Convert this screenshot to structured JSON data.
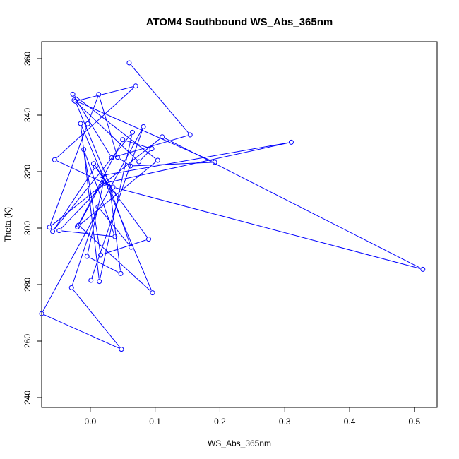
{
  "chart_data": {
    "type": "line",
    "title": "ATOM4 Southbound WS_Abs_365nm",
    "xlabel": "WS_Abs_365nm",
    "ylabel": "Theta (K)",
    "xlim": [
      -0.075,
      0.535
    ],
    "ylim": [
      236.5,
      366
    ],
    "xticks": [
      0.0,
      0.1,
      0.2,
      0.3,
      0.4,
      0.5
    ],
    "xtick_labels": [
      "0.0",
      "0.1",
      "0.2",
      "0.3",
      "0.4",
      "0.5"
    ],
    "yticks": [
      240,
      260,
      280,
      300,
      320,
      340,
      360
    ],
    "ytick_labels": [
      "240",
      "260",
      "280",
      "300",
      "320",
      "340",
      "360"
    ],
    "grid": false,
    "line_color": "#0000ff",
    "marker": "open-circle",
    "series": [
      {
        "x": [
          0.06,
          0.154,
          0.033,
          -0.027,
          0.104,
          -0.02,
          0.05,
          0.095,
          0.075,
          -0.025,
          0.192,
          0.062,
          0.042,
          0.013,
          -0.004,
          -0.063,
          0.111,
          0.513,
          0.035,
          -0.055,
          0.07,
          -0.023,
          0.036,
          0.005,
          0.018,
          0.31,
          0.022,
          -0.048,
          0.038,
          -0.01,
          0.016,
          0.09,
          0.008,
          -0.058,
          0.065,
          0.014,
          -0.015,
          0.096,
          -0.018,
          0.022,
          -0.005,
          0.047,
          0.03,
          0.063,
          0.012,
          -0.029,
          0.048,
          -0.075,
          0.082,
          0.001
        ],
        "y": [
          358.5,
          333.0,
          324.9,
          347.4,
          324.0,
          300.4,
          331.3,
          328.1,
          323.5,
          345.3,
          323.3,
          322.0,
          325.1,
          347.3,
          336.9,
          300.3,
          332.3,
          285.4,
          314.5,
          324.2,
          350.3,
          344.9,
          312.1,
          322.8,
          318.6,
          330.4,
          315.9,
          299.1,
          297.0,
          327.8,
          290.5,
          296.1,
          321.7,
          298.8,
          333.9,
          281.1,
          337.0,
          277.1,
          301.0,
          317.9,
          290.0,
          283.9,
          314.4,
          293.2,
          307.5,
          278.9,
          257.1,
          269.7,
          335.9,
          281.5
        ]
      }
    ]
  }
}
